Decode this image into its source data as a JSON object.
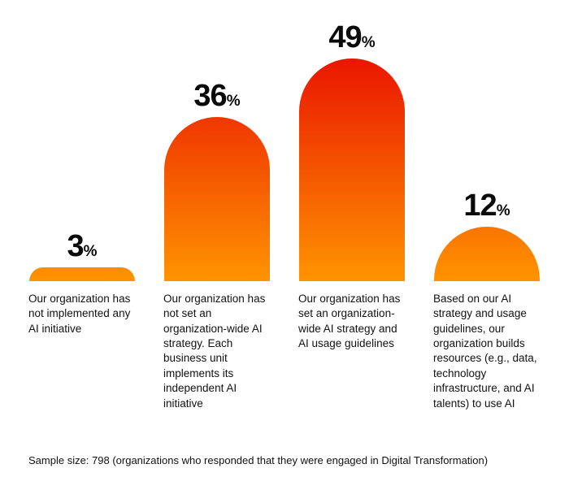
{
  "chart_data": {
    "type": "bar",
    "categories": [
      "Our organization has not implemented any AI initiative",
      "Our organization has not set an organization-wide AI strategy. Each business unit implements its independent AI initiative",
      "Our organization has set an organization-wide AI strategy and AI usage guidelines",
      "Based on our AI strategy and usage guidelines, our organization builds resources (e.g., data, technology infrastructure, and AI talents) to use AI"
    ],
    "values": [
      3,
      36,
      49,
      12
    ],
    "value_suffix": "%",
    "title": "",
    "xlabel": "",
    "ylabel": "",
    "ylim": [
      0,
      50
    ],
    "grid": false,
    "legend": "none",
    "colors": {
      "bar_gradient_bottom": "#FF9400",
      "bar_gradient_top": "#EA1500",
      "text": "#0a0a0a"
    },
    "footnote": "Sample size: 798 (organizations who responded that they were engaged in Digital Transformation)"
  }
}
